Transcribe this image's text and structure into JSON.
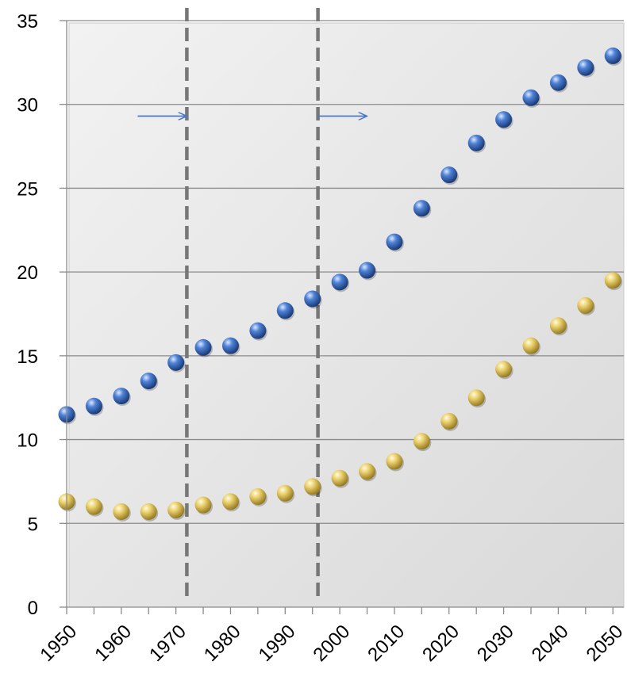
{
  "chart_data": {
    "type": "scatter",
    "title": "",
    "xlabel": "",
    "ylabel": "",
    "xlim": [
      1950,
      2052
    ],
    "ylim": [
      0,
      35
    ],
    "y_ticks": [
      0,
      5,
      10,
      15,
      20,
      25,
      30,
      35
    ],
    "x_ticks": [
      1950,
      1960,
      1970,
      1980,
      1990,
      2000,
      2010,
      2020,
      2030,
      2040,
      2050
    ],
    "x_tick_labels": [
      "1950",
      "1960",
      "1970",
      "1980",
      "1990",
      "2000",
      "2010",
      "2020",
      "2030",
      "2040",
      "2050"
    ],
    "y_tick_labels": [
      "0",
      "5",
      "10",
      "15",
      "20",
      "25",
      "30",
      "35"
    ],
    "grid": true,
    "legend": "none",
    "x": [
      1950,
      1955,
      1960,
      1965,
      1970,
      1975,
      1980,
      1985,
      1990,
      1995,
      2000,
      2005,
      2010,
      2015,
      2020,
      2025,
      2030,
      2035,
      2040,
      2045,
      2050
    ],
    "series": [
      {
        "color": "#2f5fb3",
        "values": [
          11.5,
          12.0,
          12.6,
          13.5,
          14.6,
          15.5,
          15.6,
          16.5,
          17.7,
          18.4,
          19.4,
          20.1,
          21.8,
          23.8,
          25.8,
          27.7,
          29.1,
          30.4,
          31.3,
          32.2,
          32.9
        ]
      },
      {
        "color": "#e3c24d",
        "values": [
          6.3,
          6.0,
          5.7,
          5.7,
          5.8,
          6.1,
          6.3,
          6.6,
          6.8,
          7.2,
          7.7,
          8.1,
          8.7,
          9.9,
          11.1,
          12.5,
          14.2,
          15.6,
          16.8,
          18.0,
          19.5
        ]
      }
    ],
    "reference_lines": [
      {
        "x": 1972,
        "style": "dashed",
        "color": "#777777"
      },
      {
        "x": 1996,
        "style": "dashed",
        "color": "#777777"
      }
    ],
    "arrows": [
      {
        "from_x": 1963,
        "to_x": 1972,
        "y": 29.3,
        "color": "#4a78c2"
      },
      {
        "from_x": 1996,
        "to_x": 2005,
        "y": 29.3,
        "color": "#4a78c2"
      }
    ],
    "plot_background": "#e6e6e6"
  }
}
